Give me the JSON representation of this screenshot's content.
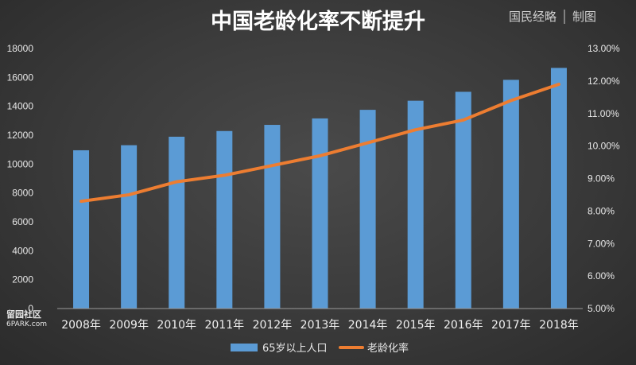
{
  "brand": {
    "name": "国民经略",
    "section": "制图"
  },
  "corner_watermark": {
    "line1": "留园社区",
    "line2": "6PARK.com"
  },
  "colors": {
    "bar": "#5b9bd5",
    "line": "#ed7d31",
    "background": "#3c3c3c",
    "text": "#e8e8e8"
  },
  "chart_data": {
    "type": "bar+line",
    "title": "中国老龄化率不断提升",
    "categories": [
      "2008年",
      "2009年",
      "2010年",
      "2011年",
      "2012年",
      "2013年",
      "2014年",
      "2015年",
      "2016年",
      "2017年",
      "2018年"
    ],
    "series": [
      {
        "name": "65岁以上人口",
        "type": "bar",
        "axis": "left",
        "values": [
          10956,
          11307,
          11894,
          12288,
          12714,
          13161,
          13755,
          14386,
          15003,
          15831,
          16658
        ]
      },
      {
        "name": "老龄化率",
        "type": "line",
        "axis": "right",
        "values": [
          8.3,
          8.5,
          8.9,
          9.1,
          9.4,
          9.7,
          10.1,
          10.5,
          10.8,
          11.4,
          11.9
        ]
      }
    ],
    "y_left": {
      "min": 0,
      "max": 18000,
      "step": 2000,
      "ticks": [
        "0",
        "2000",
        "4000",
        "6000",
        "8000",
        "10000",
        "12000",
        "14000",
        "16000",
        "18000"
      ]
    },
    "y_right": {
      "min": 5,
      "max": 13,
      "step": 1,
      "ticks": [
        "5.00%",
        "6.00%",
        "7.00%",
        "8.00%",
        "9.00%",
        "10.00%",
        "11.00%",
        "12.00%",
        "13.00%"
      ]
    },
    "grid": false,
    "legend_position": "bottom"
  }
}
